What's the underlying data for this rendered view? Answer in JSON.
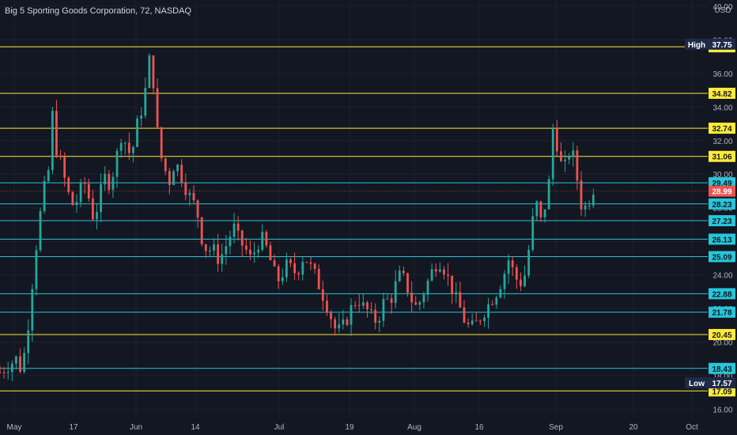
{
  "chart_data": {
    "type": "candlestick",
    "title": "Big 5 Sporting Goods Corporation, 72, NASDAQ",
    "currency": "USD",
    "x_ticks": [
      "May",
      "17",
      "Jun",
      "14",
      "Jul",
      "19",
      "Aug",
      "16",
      "Sep",
      "20",
      "Oct"
    ],
    "y_ticks": [
      16.0,
      18.0,
      20.0,
      22.0,
      24.0,
      26.0,
      28.0,
      30.0,
      32.0,
      34.0,
      36.0,
      38.0,
      40.0
    ],
    "ylim": [
      15.5,
      40.0
    ],
    "high": {
      "label": "High",
      "value": 37.75
    },
    "low": {
      "label": "Low",
      "value": 17.57
    },
    "last_price": 28.99,
    "levels": [
      {
        "value": 37.59,
        "color": "#ffeb3b"
      },
      {
        "value": 34.82,
        "color": "#ffeb3b"
      },
      {
        "value": 32.74,
        "color": "#ffeb3b"
      },
      {
        "value": 31.06,
        "color": "#ffeb3b"
      },
      {
        "value": 29.49,
        "color": "#26c6da"
      },
      {
        "value": 28.23,
        "color": "#26c6da"
      },
      {
        "value": 27.23,
        "color": "#26c6da"
      },
      {
        "value": 26.13,
        "color": "#26c6da"
      },
      {
        "value": 25.09,
        "color": "#26c6da"
      },
      {
        "value": 22.88,
        "color": "#26c6da"
      },
      {
        "value": 21.78,
        "color": "#26c6da"
      },
      {
        "value": 20.45,
        "color": "#ffeb3b"
      },
      {
        "value": 18.43,
        "color": "#26c6da"
      },
      {
        "value": 17.09,
        "color": "#ffeb3b"
      }
    ],
    "price_path": [
      [
        0,
        18.2
      ],
      [
        3,
        18.6
      ],
      [
        6,
        19.0
      ],
      [
        8,
        18.3
      ],
      [
        10,
        20.3
      ],
      [
        12,
        23.5
      ],
      [
        14,
        26.5
      ],
      [
        16,
        28.8
      ],
      [
        18,
        30.2
      ],
      [
        19,
        34.2
      ],
      [
        21,
        31.5
      ],
      [
        23,
        30.4
      ],
      [
        25,
        29.0
      ],
      [
        27,
        28.2
      ],
      [
        29,
        28.5
      ],
      [
        31,
        29.7
      ],
      [
        33,
        28.6
      ],
      [
        35,
        27.2
      ],
      [
        37,
        28.7
      ],
      [
        39,
        29.8
      ],
      [
        41,
        29.4
      ],
      [
        43,
        30.8
      ],
      [
        45,
        32.3
      ],
      [
        47,
        31.8
      ],
      [
        49,
        30.8
      ],
      [
        50,
        32.5
      ],
      [
        52,
        33.4
      ],
      [
        54,
        35.0
      ],
      [
        55,
        37.2
      ],
      [
        57,
        35.5
      ],
      [
        59,
        31.5
      ],
      [
        61,
        30.4
      ],
      [
        63,
        29.6
      ],
      [
        65,
        30.8
      ],
      [
        67,
        30.1
      ],
      [
        69,
        29.2
      ],
      [
        71,
        28.5
      ],
      [
        73,
        28.0
      ],
      [
        75,
        26.2
      ],
      [
        77,
        25.4
      ],
      [
        79,
        25.6
      ],
      [
        81,
        25.0
      ],
      [
        83,
        25.3
      ],
      [
        85,
        26.2
      ],
      [
        87,
        26.8
      ],
      [
        89,
        26.0
      ],
      [
        91,
        25.6
      ],
      [
        93,
        25.0
      ],
      [
        95,
        25.5
      ],
      [
        97,
        26.3
      ],
      [
        99,
        25.6
      ],
      [
        101,
        24.6
      ],
      [
        103,
        23.6
      ],
      [
        105,
        24.1
      ],
      [
        107,
        24.7
      ],
      [
        109,
        24.1
      ],
      [
        111,
        24.4
      ],
      [
        113,
        25.2
      ],
      [
        115,
        24.6
      ],
      [
        117,
        24.0
      ],
      [
        119,
        23.2
      ],
      [
        121,
        22.4
      ],
      [
        123,
        21.5
      ],
      [
        125,
        20.6
      ],
      [
        127,
        20.8
      ],
      [
        129,
        21.4
      ],
      [
        131,
        22.2
      ],
      [
        133,
        22.6
      ],
      [
        135,
        22.1
      ],
      [
        137,
        21.8
      ],
      [
        139,
        21.2
      ],
      [
        141,
        21.6
      ],
      [
        143,
        22.6
      ],
      [
        145,
        22.4
      ],
      [
        147,
        23.4
      ],
      [
        149,
        24.1
      ],
      [
        151,
        23.4
      ],
      [
        153,
        22.5
      ],
      [
        155,
        22.0
      ],
      [
        157,
        22.8
      ],
      [
        159,
        23.6
      ],
      [
        161,
        24.4
      ],
      [
        163,
        24.9
      ],
      [
        165,
        24.4
      ],
      [
        167,
        23.6
      ],
      [
        169,
        22.7
      ],
      [
        171,
        22.0
      ],
      [
        173,
        21.1
      ],
      [
        175,
        20.8
      ],
      [
        177,
        21.1
      ],
      [
        179,
        21.6
      ],
      [
        181,
        22.1
      ],
      [
        183,
        22.6
      ],
      [
        185,
        23.1
      ],
      [
        187,
        23.9
      ],
      [
        189,
        24.9
      ],
      [
        191,
        24.1
      ],
      [
        193,
        23.4
      ],
      [
        195,
        24.0
      ],
      [
        197,
        26.0
      ],
      [
        199,
        28.5
      ],
      [
        201,
        27.2
      ],
      [
        203,
        28.4
      ],
      [
        205,
        30.6
      ],
      [
        206,
        34.8
      ],
      [
        207,
        31.8
      ],
      [
        209,
        30.2
      ],
      [
        211,
        30.7
      ],
      [
        212,
        31.9
      ],
      [
        214,
        30.2
      ],
      [
        216,
        28.2
      ],
      [
        218,
        28.0
      ],
      [
        220,
        29.0
      ],
      [
        221,
        29.3
      ]
    ]
  }
}
